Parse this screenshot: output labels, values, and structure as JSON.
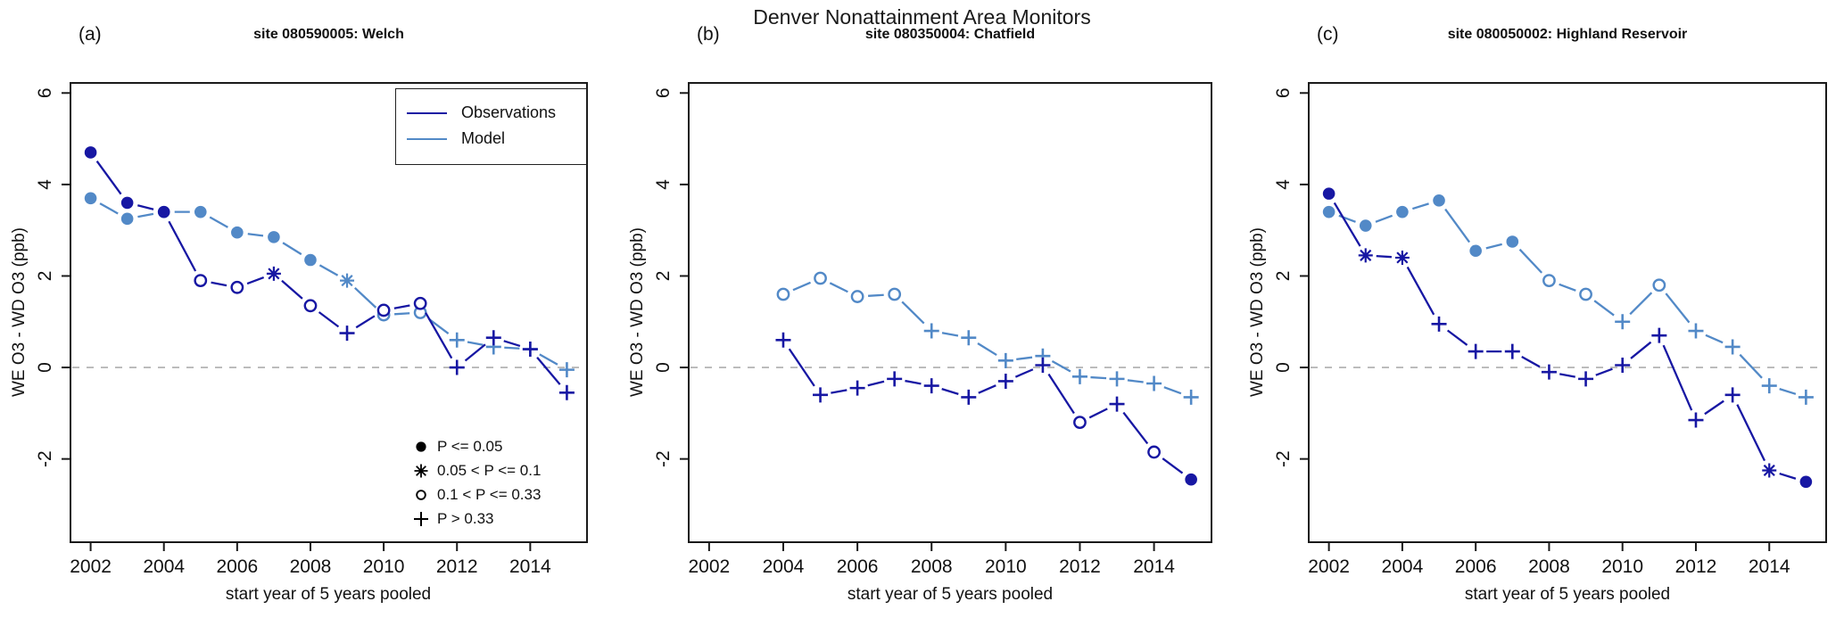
{
  "header": {
    "title": "Denver Nonattainment Area Monitors"
  },
  "axes": {
    "ylabel": "WE O3 - WD O3 (ppb)",
    "xlabel": "start year of 5 years pooled"
  },
  "colors": {
    "observations": "#1717a3",
    "model": "#5289c7",
    "zero_line": "#b8b8b8",
    "frame": "#1a1a1a",
    "text": "#111111"
  },
  "line_legend": {
    "items": [
      {
        "label": "Observations",
        "series": "observations"
      },
      {
        "label": "Model",
        "series": "model"
      }
    ]
  },
  "p_legend": {
    "items": [
      {
        "symbol": "filled-circle",
        "marker_key": "f",
        "label": "P <= 0.05"
      },
      {
        "symbol": "asterisk",
        "marker_key": "a",
        "label": "0.05 < P <= 0.1"
      },
      {
        "symbol": "open-circle",
        "marker_key": "o",
        "label": "0.1 < P <= 0.33"
      },
      {
        "symbol": "plus",
        "marker_key": "p",
        "label": "P > 0.33"
      }
    ]
  },
  "chart_data": [
    {
      "type": "line",
      "panel_label": "(a)",
      "title": "site 080590005: Welch",
      "xlabel": "start year of 5 years pooled",
      "ylabel": "WE O3 - WD O3 (ppb)",
      "xlim": [
        2001.45,
        2015.55
      ],
      "ylim": [
        -3.82,
        6.22
      ],
      "xticks": [
        2002,
        2004,
        2006,
        2008,
        2010,
        2012,
        2014
      ],
      "yticks": [
        -2,
        0,
        2,
        4,
        6
      ],
      "zero_reference_line": 0,
      "x": [
        2002,
        2003,
        2004,
        2005,
        2006,
        2007,
        2008,
        2009,
        2010,
        2011,
        2012,
        2013,
        2014,
        2015
      ],
      "series": [
        {
          "name": "Observations",
          "values": [
            4.7,
            3.6,
            3.4,
            1.9,
            1.75,
            2.05,
            1.35,
            0.75,
            1.25,
            1.4,
            0.0,
            0.65,
            0.4,
            -0.55
          ],
          "markers": [
            "f",
            "f",
            "f",
            "o",
            "o",
            "a",
            "o",
            "p",
            "o",
            "o",
            "p",
            "p",
            "p",
            "p"
          ]
        },
        {
          "name": "Model",
          "values": [
            3.7,
            3.25,
            3.4,
            3.4,
            2.95,
            2.85,
            2.35,
            1.9,
            1.15,
            1.2,
            0.6,
            0.45,
            0.4,
            -0.05
          ],
          "markers": [
            "f",
            "f",
            "f",
            "f",
            "f",
            "f",
            "f",
            "a",
            "o",
            "o",
            "p",
            "p",
            "p",
            "p"
          ]
        }
      ]
    },
    {
      "type": "line",
      "panel_label": "(b)",
      "title": "site 080350004: Chatfield",
      "xlabel": "start year of 5 years pooled",
      "ylabel": "WE O3 - WD O3 (ppb)",
      "xlim": [
        2001.45,
        2015.55
      ],
      "ylim": [
        -3.82,
        6.22
      ],
      "xticks": [
        2002,
        2004,
        2006,
        2008,
        2010,
        2012,
        2014
      ],
      "yticks": [
        -2,
        0,
        2,
        4,
        6
      ],
      "zero_reference_line": 0,
      "x": [
        2004,
        2005,
        2006,
        2007,
        2008,
        2009,
        2010,
        2011,
        2012,
        2013,
        2014,
        2015
      ],
      "series": [
        {
          "name": "Observations",
          "values": [
            0.6,
            -0.6,
            -0.45,
            -0.25,
            -0.4,
            -0.65,
            -0.3,
            0.05,
            -1.2,
            -0.8,
            -1.85,
            -2.45
          ],
          "markers": [
            "p",
            "p",
            "p",
            "p",
            "p",
            "p",
            "p",
            "p",
            "o",
            "p",
            "o",
            "f"
          ]
        },
        {
          "name": "Model",
          "values": [
            1.6,
            1.95,
            1.55,
            1.6,
            0.8,
            0.65,
            0.15,
            0.25,
            -0.2,
            -0.25,
            -0.35,
            -0.65
          ],
          "markers": [
            "o",
            "o",
            "o",
            "o",
            "p",
            "p",
            "p",
            "p",
            "p",
            "p",
            "p",
            "p"
          ]
        }
      ]
    },
    {
      "type": "line",
      "panel_label": "(c)",
      "title": "site 080050002: Highland Reservoir",
      "xlabel": "start year of 5 years pooled",
      "ylabel": "WE O3 - WD O3 (ppb)",
      "xlim": [
        2001.45,
        2015.55
      ],
      "ylim": [
        -3.82,
        6.22
      ],
      "xticks": [
        2002,
        2004,
        2006,
        2008,
        2010,
        2012,
        2014
      ],
      "yticks": [
        -2,
        0,
        2,
        4,
        6
      ],
      "zero_reference_line": 0,
      "x": [
        2002,
        2003,
        2004,
        2005,
        2006,
        2007,
        2008,
        2009,
        2010,
        2011,
        2012,
        2013,
        2014,
        2015
      ],
      "series": [
        {
          "name": "Observations",
          "values": [
            3.8,
            2.45,
            2.4,
            0.95,
            0.35,
            0.35,
            -0.1,
            -0.25,
            0.05,
            0.7,
            -1.15,
            -0.6,
            -2.25,
            -2.5
          ],
          "markers": [
            "f",
            "a",
            "a",
            "p",
            "p",
            "p",
            "p",
            "p",
            "p",
            "p",
            "p",
            "p",
            "a",
            "f"
          ]
        },
        {
          "name": "Model",
          "values": [
            3.4,
            3.1,
            3.4,
            3.65,
            2.55,
            2.75,
            1.9,
            1.6,
            1.0,
            1.8,
            0.8,
            0.45,
            -0.4,
            -0.65
          ],
          "markers": [
            "f",
            "f",
            "f",
            "f",
            "f",
            "f",
            "o",
            "o",
            "p",
            "o",
            "p",
            "p",
            "p",
            "p"
          ]
        }
      ]
    }
  ]
}
